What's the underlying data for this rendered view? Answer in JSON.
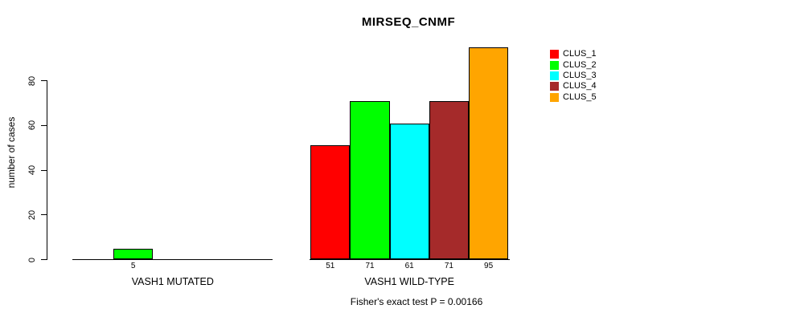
{
  "chart_data": {
    "type": "bar",
    "title": "MIRSEQ_CNMF",
    "ylabel": "number of cases",
    "xlabel": "",
    "ylim": [
      0,
      95
    ],
    "yticks": [
      0,
      20,
      40,
      60,
      80
    ],
    "grid": false,
    "legend_position": "right",
    "categories": [
      "VASH1 MUTATED",
      "VASH1 WILD-TYPE"
    ],
    "series": [
      {
        "name": "CLUS_1",
        "color": "#FF0000",
        "values": [
          0,
          51
        ]
      },
      {
        "name": "CLUS_2",
        "color": "#00FF00",
        "values": [
          5,
          71
        ]
      },
      {
        "name": "CLUS_3",
        "color": "#00FFFF",
        "values": [
          0,
          61
        ]
      },
      {
        "name": "CLUS_4",
        "color": "#A52A2A",
        "values": [
          0,
          71
        ]
      },
      {
        "name": "CLUS_5",
        "color": "#FFA500",
        "values": [
          0,
          95
        ]
      }
    ],
    "bar_value_labels": {
      "VASH1 MUTATED": [
        5
      ],
      "VASH1 WILD-TYPE": [
        51,
        71,
        61,
        71,
        95
      ]
    },
    "annotation": "Fisher's exact test P = 0.00166"
  }
}
